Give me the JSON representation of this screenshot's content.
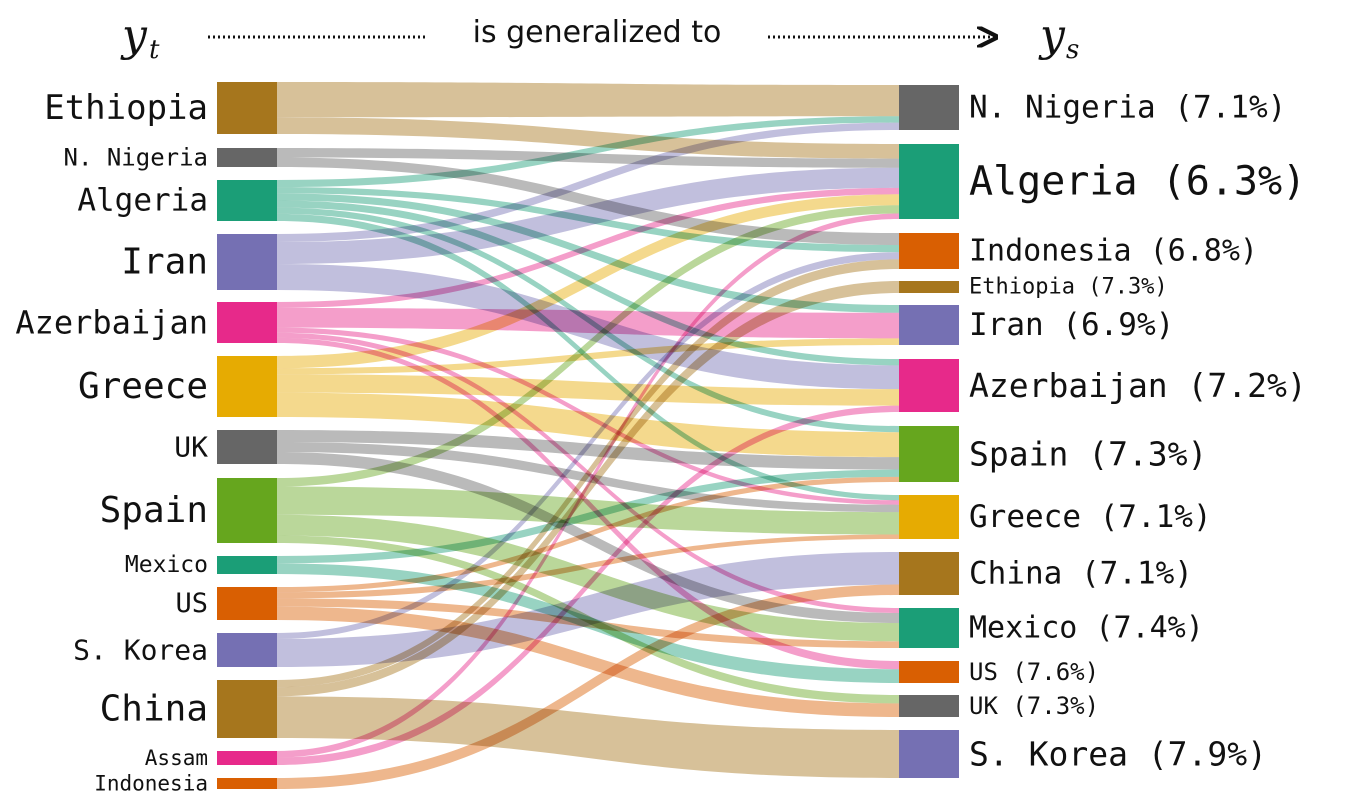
{
  "header": {
    "left_symbol": "y",
    "left_subscript": "t",
    "caption": "is generalized to",
    "right_symbol": "y",
    "right_subscript": "s"
  },
  "colors": {
    "Ethiopia": "#a6761d",
    "N. Nigeria": "#666666",
    "Algeria": "#1b9e77",
    "Iran": "#7570b3",
    "Azerbaijan": "#e7298a",
    "Greece": "#e6ab02",
    "UK": "#666666",
    "Spain": "#66a61e",
    "Mexico": "#1b9e77",
    "US": "#d95f02",
    "S. Korea": "#7570b3",
    "China": "#a6761d",
    "Assam": "#e7298a",
    "Indonesia": "#d95f02"
  },
  "chart_data": {
    "type": "sankey",
    "left_title": "y_t",
    "right_title": "y_s",
    "sources": [
      {
        "id": "Ethiopia",
        "label": "Ethiopia"
      },
      {
        "id": "N. Nigeria",
        "label": "N. Nigeria"
      },
      {
        "id": "Algeria",
        "label": "Algeria"
      },
      {
        "id": "Iran",
        "label": "Iran"
      },
      {
        "id": "Azerbaijan",
        "label": "Azerbaijan"
      },
      {
        "id": "Greece",
        "label": "Greece"
      },
      {
        "id": "UK",
        "label": "UK"
      },
      {
        "id": "Spain",
        "label": "Spain"
      },
      {
        "id": "Mexico",
        "label": "Mexico"
      },
      {
        "id": "US",
        "label": "US"
      },
      {
        "id": "S. Korea",
        "label": "S. Korea"
      },
      {
        "id": "China",
        "label": "China"
      },
      {
        "id": "Assam",
        "label": "Assam"
      },
      {
        "id": "Indonesia",
        "label": "Indonesia"
      }
    ],
    "targets": [
      {
        "id": "N. Nigeria",
        "label": "N. Nigeria (7.1%)"
      },
      {
        "id": "Algeria",
        "label": "Algeria (6.3%)"
      },
      {
        "id": "Indonesia",
        "label": "Indonesia (6.8%)"
      },
      {
        "id": "Ethiopia",
        "label": "Ethiopia (7.3%)"
      },
      {
        "id": "Iran",
        "label": "Iran (6.9%)"
      },
      {
        "id": "Azerbaijan",
        "label": "Azerbaijan (7.2%)"
      },
      {
        "id": "Spain",
        "label": "Spain (7.3%)"
      },
      {
        "id": "Greece",
        "label": "Greece (7.1%)"
      },
      {
        "id": "China",
        "label": "China (7.1%)"
      },
      {
        "id": "Mexico",
        "label": "Mexico (7.4%)"
      },
      {
        "id": "US",
        "label": "US (7.6%)"
      },
      {
        "id": "UK",
        "label": "UK (7.3%)"
      },
      {
        "id": "S. Korea",
        "label": "S. Korea (7.9%)"
      }
    ],
    "links": [
      {
        "source": "Ethiopia",
        "target": "N. Nigeria",
        "value": 34
      },
      {
        "source": "Ethiopia",
        "target": "Algeria",
        "value": 16
      },
      {
        "source": "N. Nigeria",
        "target": "Algeria",
        "value": 10
      },
      {
        "source": "N. Nigeria",
        "target": "Indonesia",
        "value": 10
      },
      {
        "source": "Algeria",
        "target": "N. Nigeria",
        "value": 7
      },
      {
        "source": "Algeria",
        "target": "Indonesia",
        "value": 6
      },
      {
        "source": "Algeria",
        "target": "Iran",
        "value": 7
      },
      {
        "source": "Algeria",
        "target": "Azerbaijan",
        "value": 7
      },
      {
        "source": "Algeria",
        "target": "Spain",
        "value": 6
      },
      {
        "source": "Algeria",
        "target": "Greece",
        "value": 7
      },
      {
        "source": "Iran",
        "target": "N. Nigeria",
        "value": 8
      },
      {
        "source": "Iran",
        "target": "Algeria",
        "value": 22
      },
      {
        "source": "Iran",
        "target": "Azerbaijan",
        "value": 26
      },
      {
        "source": "Azerbaijan",
        "target": "Algeria",
        "value": 7
      },
      {
        "source": "Azerbaijan",
        "target": "Iran",
        "value": 23
      },
      {
        "source": "Azerbaijan",
        "target": "Greece",
        "value": 6
      },
      {
        "source": "Azerbaijan",
        "target": "Mexico",
        "value": 6
      },
      {
        "source": "Azerbaijan",
        "target": "US",
        "value": 6
      },
      {
        "source": "Greece",
        "target": "Algeria",
        "value": 12
      },
      {
        "source": "Greece",
        "target": "Iran",
        "value": 6
      },
      {
        "source": "Greece",
        "target": "Azerbaijan",
        "value": 18
      },
      {
        "source": "Greece",
        "target": "Spain",
        "value": 24
      },
      {
        "source": "UK",
        "target": "Spain",
        "value": 12
      },
      {
        "source": "UK",
        "target": "Greece",
        "value": 10
      },
      {
        "source": "UK",
        "target": "Mexico",
        "value": 12
      },
      {
        "source": "Spain",
        "target": "Algeria",
        "value": 9
      },
      {
        "source": "Spain",
        "target": "Greece",
        "value": 30
      },
      {
        "source": "Spain",
        "target": "Mexico",
        "value": 22
      },
      {
        "source": "Spain",
        "target": "UK",
        "value": 8
      },
      {
        "source": "Mexico",
        "target": "Spain",
        "value": 7
      },
      {
        "source": "Mexico",
        "target": "US",
        "value": 10
      },
      {
        "source": "US",
        "target": "Spain",
        "value": 5
      },
      {
        "source": "US",
        "target": "Greece",
        "value": 6
      },
      {
        "source": "US",
        "target": "Mexico",
        "value": 8
      },
      {
        "source": "US",
        "target": "UK",
        "value": 13
      },
      {
        "source": "S. Korea",
        "target": "Indonesia",
        "value": 6
      },
      {
        "source": "S. Korea",
        "target": "China",
        "value": 28
      },
      {
        "source": "China",
        "target": "Indonesia",
        "value": 8
      },
      {
        "source": "China",
        "target": "Ethiopia",
        "value": 10
      },
      {
        "source": "China",
        "target": "S. Korea",
        "value": 46
      },
      {
        "source": "Assam",
        "target": "Algeria",
        "value": 6
      },
      {
        "source": "Assam",
        "target": "Azerbaijan",
        "value": 7
      },
      {
        "source": "Indonesia",
        "target": "China",
        "value": 9
      }
    ]
  }
}
